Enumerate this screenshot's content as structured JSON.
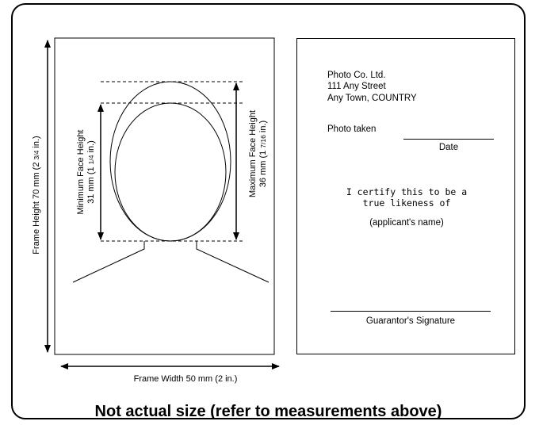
{
  "diagram": {
    "frame_height_label": "Frame Height 70 mm (2",
    "frame_height_frac": "3/4",
    "frame_height_suffix": " in.)",
    "frame_width_label": "Frame Width 50 mm (2 in.)",
    "min_face_line1": "Minimum Face Height",
    "min_face_line2a": "31 mm (1",
    "min_face_frac": "1/4",
    "min_face_line2b": " in.)",
    "max_face_line1": "Maximum Face Height",
    "max_face_line2a": "36 mm (1",
    "max_face_frac": "7/16",
    "max_face_line2b": " in.)"
  },
  "back": {
    "company": "Photo Co. Ltd.",
    "street": "111 Any Street",
    "city": "Any Town, COUNTRY",
    "photo_taken": "Photo taken",
    "date": "Date",
    "certify_line1": "I certify this to be a",
    "certify_line2": "true likeness of",
    "applicant": "(applicant's name)",
    "signature": "Guarantor's Signature"
  },
  "caption": "Not actual size (refer to measurements above)"
}
